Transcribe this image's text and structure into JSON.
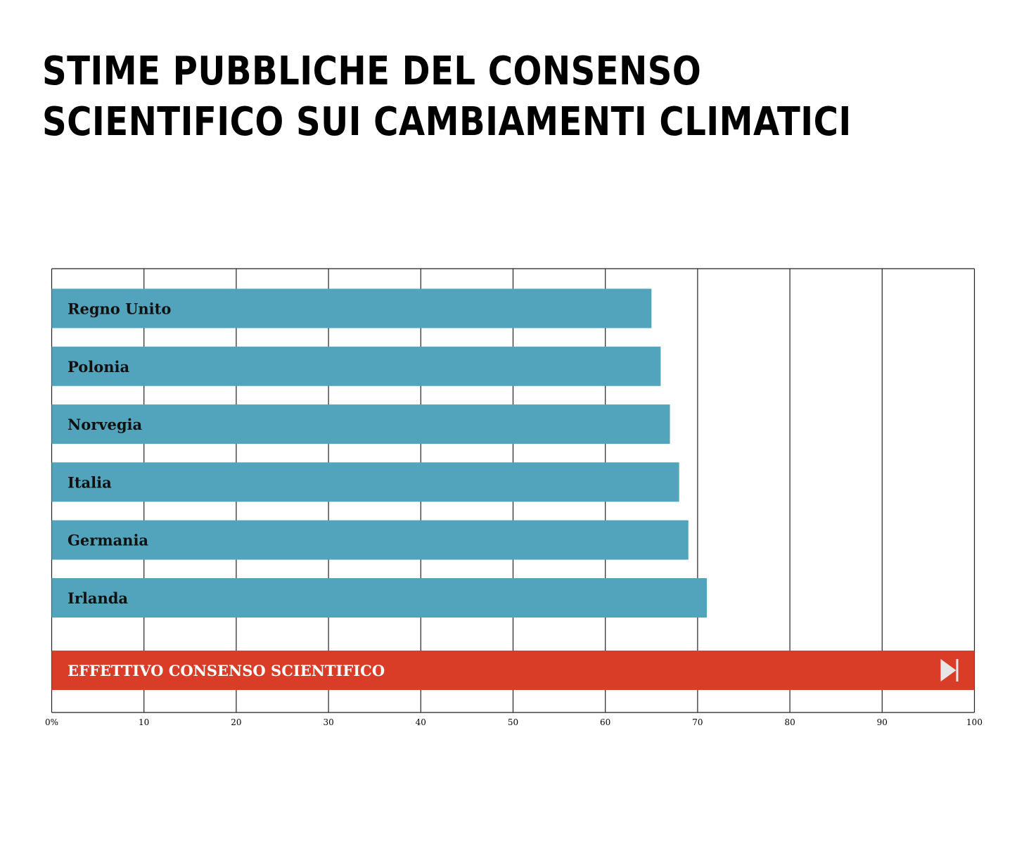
{
  "chart_data": {
    "type": "bar",
    "orientation": "horizontal",
    "title_lines": [
      "STIME PUBBLICHE DEL CONSENSO",
      "SCIENTIFICO SUI CAMBIAMENTI CLIMATICI"
    ],
    "categories": [
      "Regno Unito",
      "Polonia",
      "Norvegia",
      "Italia",
      "Germania",
      "Irlanda"
    ],
    "values": [
      65,
      66,
      67,
      68,
      69,
      71
    ],
    "reference": {
      "label": "EFFETTIVO CONSENSO SCIENTIFICO",
      "value": 100,
      "icon": "skip-forward-icon"
    },
    "xlim": [
      0,
      100
    ],
    "x_ticks": [
      "0%",
      "10",
      "20",
      "30",
      "40",
      "50",
      "60",
      "70",
      "80",
      "90",
      "100"
    ],
    "x_tick_values": [
      0,
      10,
      20,
      30,
      40,
      50,
      60,
      70,
      80,
      90,
      100
    ],
    "grid": true,
    "colors": {
      "bar": "#52a4bc",
      "reference": "#d93d27",
      "grid": "#222222",
      "icon": "#e6e6e6"
    }
  }
}
